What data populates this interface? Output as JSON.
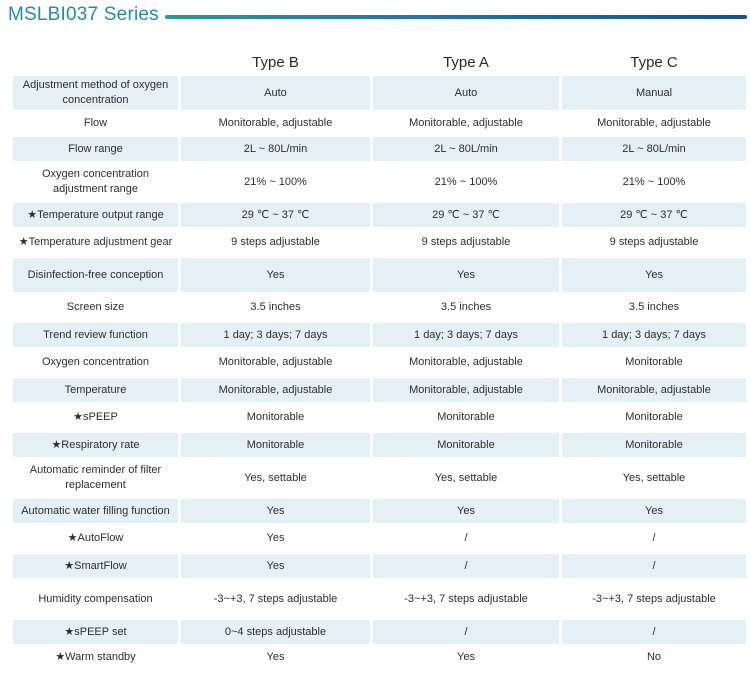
{
  "title": "MSLBI037 Series",
  "columns": [
    "Type B",
    "Type A",
    "Type C"
  ],
  "rows": [
    {
      "feature": "Adjustment method of oxygen concentration",
      "values": [
        "Auto",
        "Auto",
        "Manual"
      ]
    },
    {
      "feature": "Flow",
      "values": [
        "Monitorable, adjustable",
        "Monitorable, adjustable",
        "Monitorable, adjustable"
      ]
    },
    {
      "feature": "Flow range",
      "values": [
        "2L ~ 80L/min",
        "2L ~ 80L/min",
        "2L ~ 80L/min"
      ]
    },
    {
      "feature": "Oxygen concentration adjustment range",
      "values": [
        "21% ~ 100%",
        "21% ~ 100%",
        "21% ~ 100%"
      ]
    },
    {
      "feature": "★Temperature output range",
      "values": [
        "29 ℃ ~ 37 ℃",
        "29 ℃ ~ 37 ℃",
        "29 ℃ ~ 37 ℃"
      ]
    },
    {
      "feature": "★Temperature adjustment gear",
      "values": [
        "9 steps adjustable",
        "9 steps adjustable",
        "9 steps adjustable"
      ]
    },
    {
      "feature": "Disinfection-free conception",
      "values": [
        "Yes",
        "Yes",
        "Yes"
      ]
    },
    {
      "feature": "Screen size",
      "values": [
        "3.5 inches",
        "3.5 inches",
        "3.5 inches"
      ]
    },
    {
      "feature": "Trend review function",
      "values": [
        "1 day; 3 days; 7 days",
        "1 day; 3 days; 7 days",
        "1 day; 3 days; 7 days"
      ]
    },
    {
      "feature": "Oxygen concentration",
      "values": [
        "Monitorable, adjustable",
        "Monitorable, adjustable",
        "Monitorable"
      ]
    },
    {
      "feature": "Temperature",
      "values": [
        "Monitorable, adjustable",
        "Monitorable, adjustable",
        "Monitorable, adjustable"
      ]
    },
    {
      "feature": "★sPEEP",
      "values": [
        "Monitorable",
        "Monitorable",
        "Monitorable"
      ]
    },
    {
      "feature": "★Respiratory rate",
      "values": [
        "Monitorable",
        "Monitorable",
        "Monitorable"
      ]
    },
    {
      "feature": "Automatic reminder of filter replacement",
      "values": [
        "Yes, settable",
        "Yes, settable",
        "Yes, settable"
      ]
    },
    {
      "feature": "Automatic water filling function",
      "values": [
        "Yes",
        "Yes",
        "Yes"
      ]
    },
    {
      "feature": "★AutoFlow",
      "values": [
        "Yes",
        "/",
        "/"
      ]
    },
    {
      "feature": "★SmartFlow",
      "values": [
        "Yes",
        "/",
        "/"
      ]
    },
    {
      "feature": "Humidity compensation",
      "values": [
        "-3~+3, 7 steps adjustable",
        "-3~+3, 7 steps adjustable",
        "-3~+3, 7 steps adjustable"
      ]
    },
    {
      "feature": "★sPEEP set",
      "values": [
        "0~4 steps adjustable",
        "/",
        "/"
      ]
    },
    {
      "feature": "★Warm standby",
      "values": [
        "Yes",
        "Yes",
        "No"
      ]
    }
  ]
}
